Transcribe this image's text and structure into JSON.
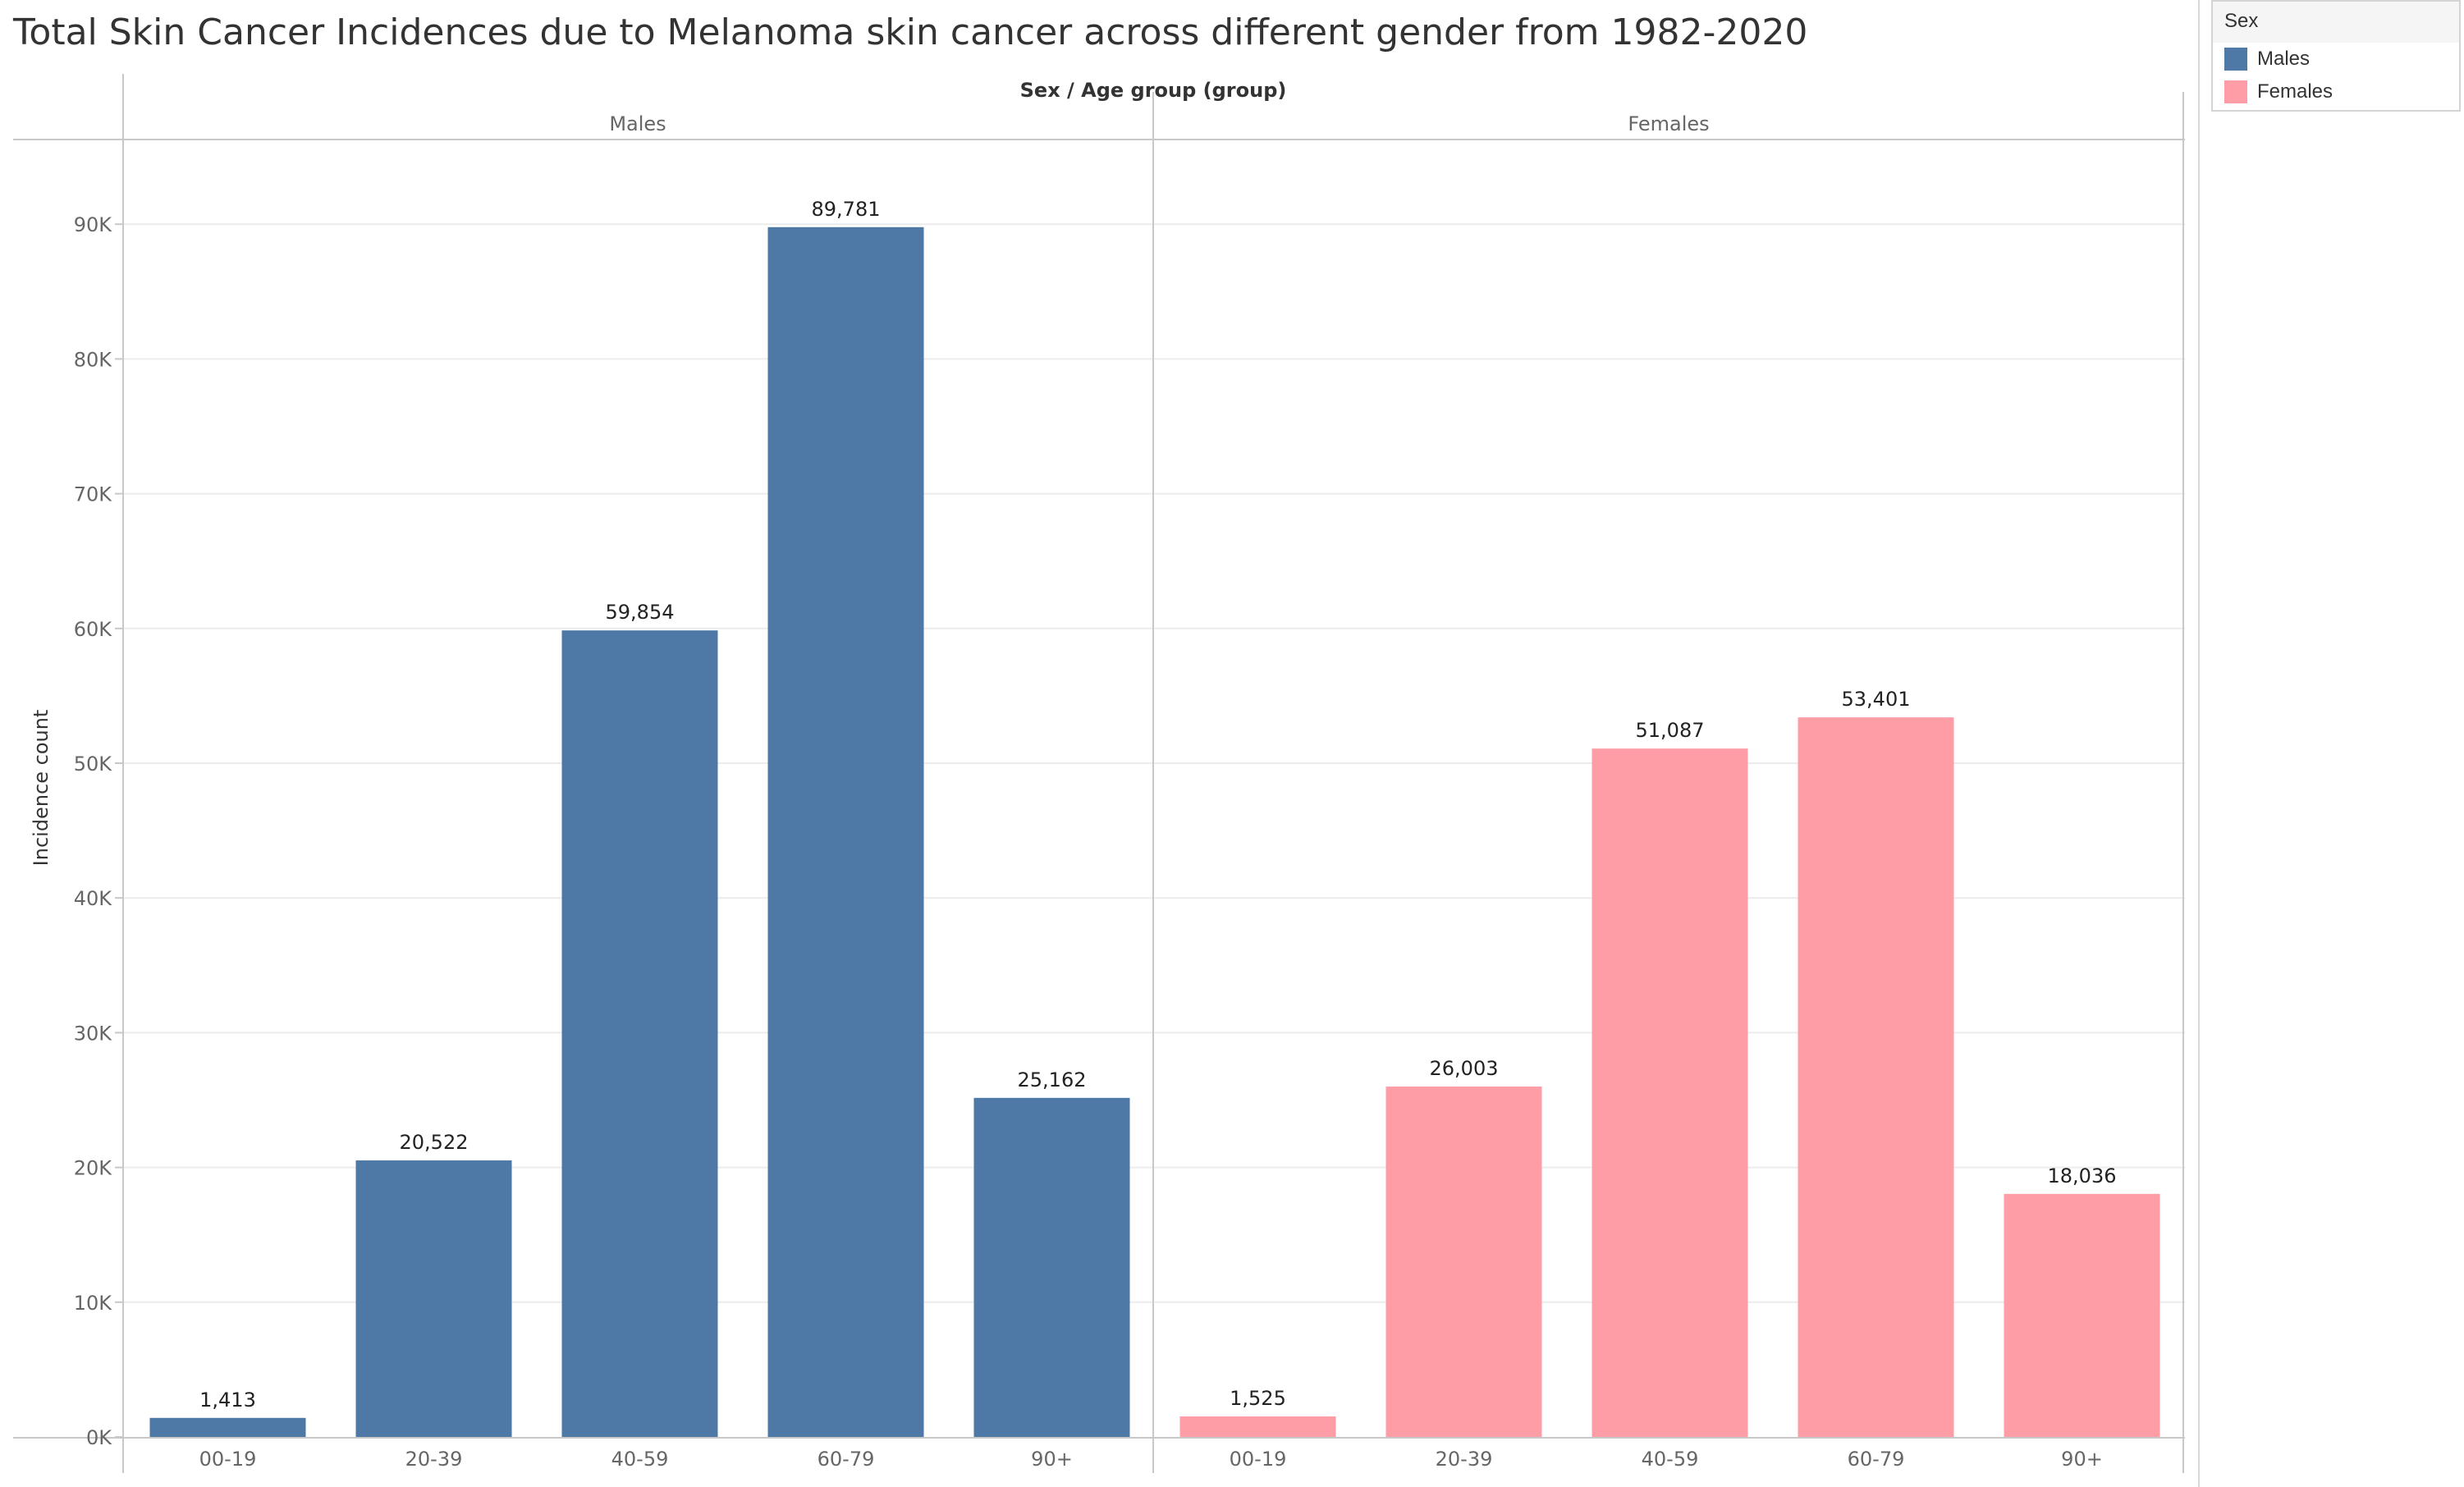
{
  "chart_data": {
    "type": "bar",
    "title": "Total Skin Cancer Incidences due to Melanoma skin cancer across different gender from 1982-2020",
    "header_label": "Sex  /  Age group (group)",
    "ylabel": "Incidence count",
    "ylim": [
      0,
      95000
    ],
    "yticks": [
      0,
      10000,
      20000,
      30000,
      40000,
      50000,
      60000,
      70000,
      80000,
      90000
    ],
    "ytick_labels": [
      "0K",
      "10K",
      "20K",
      "30K",
      "40K",
      "50K",
      "60K",
      "70K",
      "80K",
      "90K"
    ],
    "grid": true,
    "legend_position": "top-right",
    "legend_title": "Sex",
    "categories": [
      "00-19",
      "20-39",
      "40-59",
      "60-79",
      "90+"
    ],
    "series": [
      {
        "name": "Males",
        "color": "#4e79a7",
        "values": [
          1413,
          20522,
          59854,
          89781,
          25162
        ],
        "labels": [
          "1,413",
          "20,522",
          "59,854",
          "89,781",
          "25,162"
        ]
      },
      {
        "name": "Females",
        "color": "#ff9da7",
        "values": [
          1525,
          26003,
          51087,
          53401,
          18036
        ],
        "labels": [
          "1,525",
          "26,003",
          "51,087",
          "53,401",
          "18,036"
        ]
      }
    ]
  }
}
